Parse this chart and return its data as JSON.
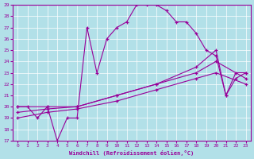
{
  "xlabel": "Windchill (Refroidissement éolien,°C)",
  "background_color": "#b2e0e8",
  "line_color": "#990099",
  "xlim": [
    -0.5,
    23.5
  ],
  "ylim": [
    17,
    29
  ],
  "yticks": [
    17,
    18,
    19,
    20,
    21,
    22,
    23,
    24,
    25,
    26,
    27,
    28,
    29
  ],
  "xticks": [
    0,
    1,
    2,
    3,
    4,
    5,
    6,
    7,
    8,
    9,
    10,
    11,
    12,
    13,
    14,
    15,
    16,
    17,
    18,
    19,
    20,
    21,
    22,
    23
  ],
  "series": [
    {
      "x": [
        0,
        1,
        2,
        3,
        4,
        5,
        6,
        7,
        8,
        9,
        10,
        11,
        12,
        13,
        14,
        15,
        16,
        17,
        18,
        19,
        20,
        21,
        22,
        23
      ],
      "y": [
        20,
        20,
        19,
        20,
        17,
        19,
        19,
        27,
        23,
        26,
        27,
        27.5,
        29,
        29,
        29,
        28.5,
        27.5,
        27.5,
        26.5,
        25,
        24.5,
        21,
        23,
        23
      ]
    },
    {
      "x": [
        0,
        3,
        6,
        10,
        14,
        18,
        20,
        21,
        22,
        23
      ],
      "y": [
        20,
        20,
        20,
        21,
        22,
        23.5,
        25,
        21,
        22.5,
        23
      ]
    },
    {
      "x": [
        0,
        3,
        6,
        10,
        14,
        18,
        20,
        23
      ],
      "y": [
        19.5,
        19.8,
        20,
        21,
        22,
        23,
        24,
        22.5
      ]
    },
    {
      "x": [
        0,
        3,
        6,
        10,
        14,
        18,
        20,
        23
      ],
      "y": [
        19,
        19.5,
        19.8,
        20.5,
        21.5,
        22.5,
        23,
        22
      ]
    }
  ]
}
